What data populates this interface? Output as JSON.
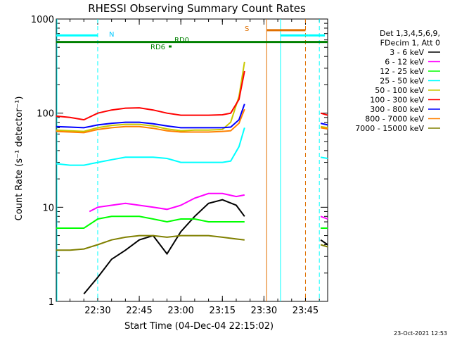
{
  "chart_data": {
    "type": "line",
    "title": "RHESSI Observing Summary Count Rates",
    "xlabel": "Start Time (04-Dec-04 22:15:02)",
    "ylabel": "Count Rate (s⁻¹ detector⁻¹)",
    "y_scale": "log",
    "xlim": [
      "22:15:02",
      "23:53:00"
    ],
    "ylim": [
      1,
      1000
    ],
    "x_ticks": [
      "22:30",
      "22:45",
      "23:00",
      "23:15",
      "23:30",
      "23:45"
    ],
    "y_ticks": [
      {
        "value": 1,
        "label": "1"
      },
      {
        "value": 10,
        "label": "10"
      },
      {
        "value": 100,
        "label": "100"
      },
      {
        "value": 1000,
        "label": "1000"
      }
    ],
    "legend_header": [
      "Det 1,3,4,5,6,9,",
      "FDecim 1, Att 0"
    ],
    "legend_position": "right",
    "footer_date": "23-Oct-2021 12:53",
    "flag_labels": [
      {
        "text": "N",
        "color": "#00c8ff"
      },
      {
        "text": "RD0",
        "color": "#008000"
      },
      {
        "text": "RD6",
        "color": "#008000"
      },
      {
        "text": "S",
        "color": "#e07000"
      }
    ],
    "flags": [
      {
        "label": "N",
        "color": "#00ffff",
        "level": 670,
        "segments": [
          [
            "22:15:02",
            "22:30:00"
          ],
          [
            "23:36:00",
            "23:46:00"
          ],
          [
            "23:46:00",
            "23:52:00"
          ]
        ]
      },
      {
        "label": "RD0",
        "color": "#008000",
        "level": 570,
        "segments": [
          [
            "22:15:02",
            "23:53:00"
          ]
        ]
      },
      {
        "label": "S",
        "color": "#e07000",
        "level": 760,
        "segments": [
          [
            "23:31:00",
            "23:45:00"
          ]
        ]
      }
    ],
    "vertical_markers": [
      {
        "time": "22:30:00",
        "color": "#00ffff",
        "style": "dashed"
      },
      {
        "time": "23:31:00",
        "color": "#e07000",
        "style": "solid"
      },
      {
        "time": "23:36:00",
        "color": "#00ffff",
        "style": "solid"
      },
      {
        "time": "23:45:00",
        "color": "#e07000",
        "style": "dashed"
      },
      {
        "time": "23:50:00",
        "color": "#00ffff",
        "style": "dashed"
      }
    ],
    "series": [
      {
        "name": "3 - 6 keV",
        "color": "#000000",
        "x": [
          "22:25:00",
          "22:30:00",
          "22:35:00",
          "22:40:00",
          "22:45:00",
          "22:50:00",
          "22:55:00",
          "23:00:00",
          "23:05:00",
          "23:10:00",
          "23:15:00",
          "23:20:00",
          "23:23:00",
          "23:50:30",
          "23:53:00"
        ],
        "values": [
          1.2,
          1.8,
          2.8,
          3.5,
          4.5,
          5.0,
          3.2,
          5.5,
          8.0,
          11.0,
          12.0,
          10.5,
          8.0,
          4.5,
          4.0
        ]
      },
      {
        "name": "6 - 12 keV",
        "color": "#ff00ff",
        "x": [
          "22:27:00",
          "22:30:00",
          "22:35:00",
          "22:40:00",
          "22:45:00",
          "22:50:00",
          "22:55:00",
          "23:00:00",
          "23:05:00",
          "23:10:00",
          "23:15:00",
          "23:20:00",
          "23:23:00",
          "23:50:30",
          "23:53:00"
        ],
        "values": [
          9.0,
          10.0,
          10.5,
          11.0,
          10.5,
          10.0,
          9.5,
          10.5,
          12.5,
          14.0,
          14.0,
          13.0,
          13.5,
          8.0,
          7.5
        ]
      },
      {
        "name": "12 - 25 keV",
        "color": "#00ff00",
        "x": [
          "22:15:02",
          "22:20:00",
          "22:25:00",
          "22:30:00",
          "22:35:00",
          "22:40:00",
          "22:45:00",
          "22:50:00",
          "22:55:00",
          "23:00:00",
          "23:05:00",
          "23:10:00",
          "23:15:00",
          "23:20:00",
          "23:23:00",
          "23:50:30",
          "23:53:00"
        ],
        "values": [
          6.0,
          6.0,
          6.0,
          7.5,
          8.0,
          8.0,
          8.0,
          7.5,
          7.0,
          7.5,
          7.5,
          7.0,
          7.0,
          7.0,
          7.0,
          6.0,
          6.0
        ]
      },
      {
        "name": "25 - 50 keV",
        "color": "#00ffff",
        "x": [
          "22:15:02",
          "22:20:00",
          "22:25:00",
          "22:30:00",
          "22:35:00",
          "22:40:00",
          "22:45:00",
          "22:50:00",
          "22:55:00",
          "23:00:00",
          "23:05:00",
          "23:10:00",
          "23:15:00",
          "23:18:00",
          "23:21:00",
          "23:23:00",
          "23:50:30",
          "23:53:00"
        ],
        "values": [
          29,
          28,
          28,
          30,
          32,
          34,
          34,
          34,
          33,
          30,
          30,
          30,
          30,
          31,
          44,
          70,
          34,
          33
        ]
      },
      {
        "name": "50 - 100 keV",
        "color": "#c8c800",
        "x": [
          "22:15:02",
          "22:20:00",
          "22:25:00",
          "22:30:00",
          "22:35:00",
          "22:40:00",
          "22:45:00",
          "22:50:00",
          "22:55:00",
          "23:00:00",
          "23:05:00",
          "23:10:00",
          "23:15:00",
          "23:18:00",
          "23:21:00",
          "23:23:00",
          "23:50:30",
          "23:53:00"
        ],
        "values": [
          66,
          65,
          64,
          70,
          74,
          76,
          76,
          73,
          68,
          65,
          66,
          66,
          67,
          80,
          150,
          350,
          72,
          70
        ]
      },
      {
        "name": "100 - 300 keV",
        "color": "#ff0000",
        "x": [
          "22:15:02",
          "22:20:00",
          "22:25:00",
          "22:30:00",
          "22:35:00",
          "22:40:00",
          "22:45:00",
          "22:50:00",
          "22:55:00",
          "23:00:00",
          "23:05:00",
          "23:10:00",
          "23:15:00",
          "23:18:00",
          "23:21:00",
          "23:23:00",
          "23:50:30",
          "23:53:00"
        ],
        "values": [
          93,
          90,
          85,
          100,
          108,
          113,
          114,
          108,
          100,
          95,
          95,
          95,
          96,
          100,
          140,
          280,
          100,
          95
        ]
      },
      {
        "name": "300 - 800 keV",
        "color": "#0000ff",
        "x": [
          "22:15:02",
          "22:20:00",
          "22:25:00",
          "22:30:00",
          "22:35:00",
          "22:40:00",
          "22:45:00",
          "22:50:00",
          "22:55:00",
          "23:00:00",
          "23:05:00",
          "23:10:00",
          "23:15:00",
          "23:18:00",
          "23:21:00",
          "23:23:00",
          "23:50:30",
          "23:53:00"
        ],
        "values": [
          72,
          71,
          70,
          75,
          78,
          80,
          80,
          77,
          73,
          70,
          70,
          70,
          70,
          71,
          85,
          125,
          78,
          75
        ]
      },
      {
        "name": "800 - 7000 keV",
        "color": "#ff8000",
        "x": [
          "22:15:02",
          "22:20:00",
          "22:25:00",
          "22:30:00",
          "22:35:00",
          "22:40:00",
          "22:45:00",
          "22:50:00",
          "22:55:00",
          "23:00:00",
          "23:05:00",
          "23:10:00",
          "23:15:00",
          "23:18:00",
          "23:21:00",
          "23:23:00",
          "23:50:30",
          "23:53:00"
        ],
        "values": [
          64,
          63,
          62,
          67,
          70,
          72,
          72,
          69,
          65,
          63,
          63,
          63,
          64,
          65,
          78,
          110,
          70,
          68
        ]
      },
      {
        "name": "7000 - 15000 keV",
        "color": "#808000",
        "x": [
          "22:15:02",
          "22:20:00",
          "22:25:00",
          "22:30:00",
          "22:35:00",
          "22:40:00",
          "22:45:00",
          "22:50:00",
          "22:55:00",
          "23:00:00",
          "23:05:00",
          "23:10:00",
          "23:15:00",
          "23:20:00",
          "23:23:00",
          "23:50:30",
          "23:53:00"
        ],
        "values": [
          3.5,
          3.5,
          3.6,
          4.0,
          4.5,
          4.8,
          5.0,
          5.0,
          4.8,
          5.0,
          5.0,
          5.0,
          4.8,
          4.6,
          4.5,
          4.0,
          3.8
        ]
      }
    ]
  }
}
